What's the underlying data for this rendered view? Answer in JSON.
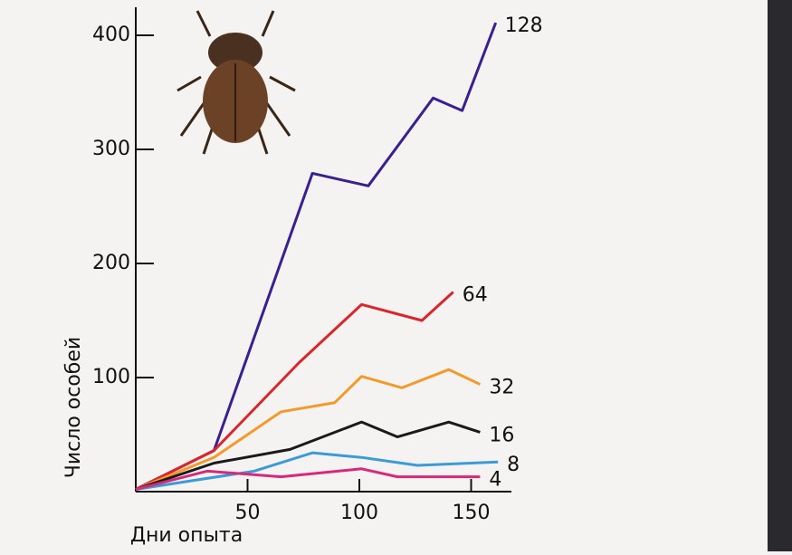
{
  "chart_data": {
    "type": "line",
    "x_label": "Дни опыта",
    "y_label": "Число особей",
    "xlim": [
      0,
      170
    ],
    "ylim": [
      0,
      420
    ],
    "xticks": [
      50,
      100,
      150
    ],
    "yticks": [
      100,
      200,
      300,
      400
    ],
    "series": [
      {
        "name": "128",
        "color": "#3a1f8f",
        "x": [
          0,
          35,
          79,
          104,
          133,
          146,
          161
        ],
        "values": [
          2,
          36,
          279,
          268,
          345,
          334,
          411
        ]
      },
      {
        "name": "64",
        "color": "#d9262b",
        "x": [
          0,
          35,
          73,
          101,
          128,
          142
        ],
        "values": [
          2,
          36,
          113,
          164,
          150,
          175
        ]
      },
      {
        "name": "32",
        "color": "#f39a2a",
        "x": [
          0,
          35,
          65,
          89,
          101,
          119,
          140,
          154
        ],
        "values": [
          2,
          30,
          70,
          78,
          101,
          91,
          107,
          94
        ]
      },
      {
        "name": "16",
        "color": "#1a1a1a",
        "x": [
          0,
          35,
          69,
          101,
          117,
          140,
          154
        ],
        "values": [
          2,
          25,
          37,
          61,
          48,
          61,
          52
        ]
      },
      {
        "name": "8",
        "color": "#3c9ad8",
        "x": [
          0,
          53,
          79,
          101,
          126,
          162
        ],
        "values": [
          2,
          18,
          34,
          30,
          23,
          26
        ]
      },
      {
        "name": "4",
        "color": "#d6297a",
        "x": [
          0,
          32,
          65,
          101,
          117,
          154
        ],
        "values": [
          2,
          18,
          13,
          20,
          13,
          13
        ]
      }
    ]
  }
}
